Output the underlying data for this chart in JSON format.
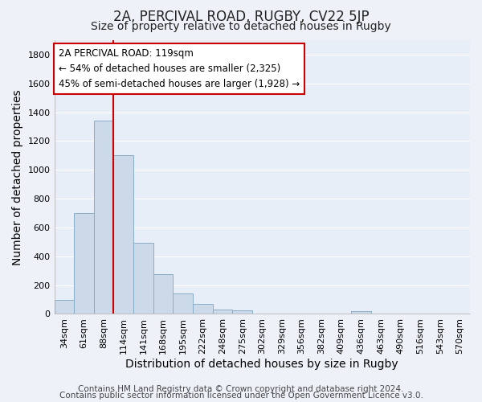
{
  "title": "2A, PERCIVAL ROAD, RUGBY, CV22 5JP",
  "subtitle": "Size of property relative to detached houses in Rugby",
  "xlabel": "Distribution of detached houses by size in Rugby",
  "ylabel": "Number of detached properties",
  "categories": [
    "34sqm",
    "61sqm",
    "88sqm",
    "114sqm",
    "141sqm",
    "168sqm",
    "195sqm",
    "222sqm",
    "248sqm",
    "275sqm",
    "302sqm",
    "329sqm",
    "356sqm",
    "382sqm",
    "409sqm",
    "436sqm",
    "463sqm",
    "490sqm",
    "516sqm",
    "543sqm",
    "570sqm"
  ],
  "values": [
    100,
    700,
    1340,
    1100,
    495,
    275,
    140,
    70,
    30,
    25,
    0,
    0,
    0,
    0,
    0,
    20,
    0,
    0,
    0,
    0,
    0
  ],
  "bar_color": "#ccd9e8",
  "bar_edge_color": "#8aaec8",
  "vline_color": "#cc0000",
  "annotation_text": "2A PERCIVAL ROAD: 119sqm\n← 54% of detached houses are smaller (2,325)\n45% of semi-detached houses are larger (1,928) →",
  "annotation_box_color": "#ffffff",
  "annotation_box_edge": "#cc0000",
  "ylim": [
    0,
    1900
  ],
  "yticks": [
    0,
    200,
    400,
    600,
    800,
    1000,
    1200,
    1400,
    1600,
    1800
  ],
  "footer1": "Contains HM Land Registry data © Crown copyright and database right 2024.",
  "footer2": "Contains public sector information licensed under the Open Government Licence v3.0.",
  "background_color": "#eef2f8",
  "plot_bg_color": "#e8eef8",
  "grid_color": "#ffffff",
  "title_fontsize": 12,
  "subtitle_fontsize": 10,
  "axis_label_fontsize": 10,
  "tick_fontsize": 8,
  "footer_fontsize": 7.5
}
